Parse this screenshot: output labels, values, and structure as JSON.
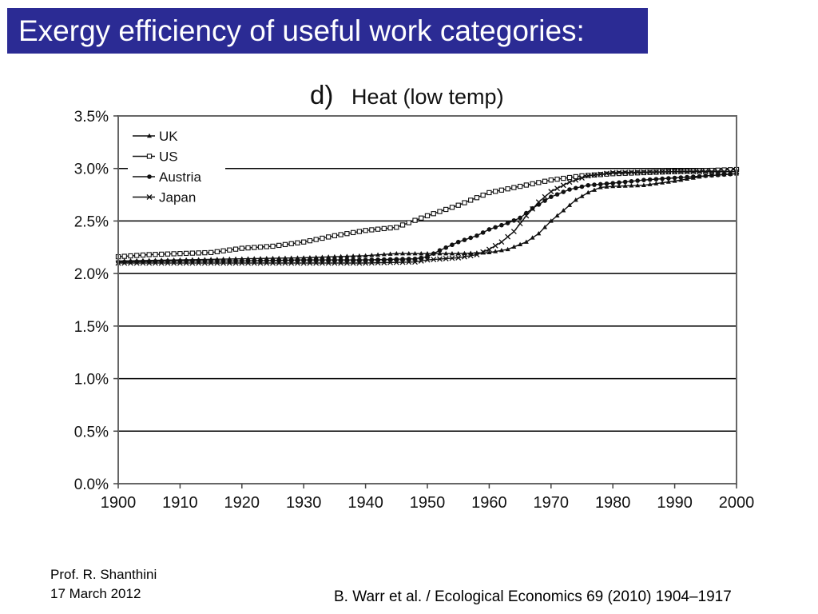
{
  "slide": {
    "title": "Exergy efficiency of useful work categories:",
    "author": "Prof. R. Shanthini",
    "date": "17 March 2012",
    "citation": "B. Warr et al. / Ecological Economics 69 (2010) 1904–1917"
  },
  "colors": {
    "title_bar": "#2b2b94",
    "title_text": "#ffffff",
    "series": "#111111"
  },
  "chart_data": {
    "type": "line",
    "title_prefix": "d)",
    "title": "Heat (low temp)",
    "xlabel": "",
    "ylabel": "",
    "xlim": [
      1900,
      2000
    ],
    "ylim": [
      0,
      3.5
    ],
    "x_ticks": [
      "1900",
      "1910",
      "1920",
      "1930",
      "1940",
      "1950",
      "1960",
      "1970",
      "1980",
      "1990",
      "2000"
    ],
    "y_ticks": [
      "0.0%",
      "0.5%",
      "1.0%",
      "1.5%",
      "2.0%",
      "2.5%",
      "3.0%",
      "3.5%"
    ],
    "grid": "horizontal",
    "legend_position": "top-left",
    "series": [
      {
        "name": "UK",
        "marker": "triangle",
        "points": [
          [
            1900,
            2.12
          ],
          [
            1910,
            2.13
          ],
          [
            1920,
            2.14
          ],
          [
            1930,
            2.15
          ],
          [
            1940,
            2.17
          ],
          [
            1945,
            2.19
          ],
          [
            1950,
            2.19
          ],
          [
            1955,
            2.19
          ],
          [
            1960,
            2.2
          ],
          [
            1963,
            2.23
          ],
          [
            1966,
            2.3
          ],
          [
            1968,
            2.38
          ],
          [
            1970,
            2.5
          ],
          [
            1972,
            2.6
          ],
          [
            1974,
            2.7
          ],
          [
            1976,
            2.77
          ],
          [
            1978,
            2.82
          ],
          [
            1980,
            2.83
          ],
          [
            1985,
            2.84
          ],
          [
            1990,
            2.88
          ],
          [
            1995,
            2.93
          ],
          [
            2000,
            2.95
          ]
        ]
      },
      {
        "name": "US",
        "marker": "square-open",
        "points": [
          [
            1900,
            2.16
          ],
          [
            1905,
            2.18
          ],
          [
            1910,
            2.19
          ],
          [
            1915,
            2.2
          ],
          [
            1920,
            2.24
          ],
          [
            1925,
            2.26
          ],
          [
            1930,
            2.3
          ],
          [
            1935,
            2.36
          ],
          [
            1940,
            2.41
          ],
          [
            1945,
            2.44
          ],
          [
            1950,
            2.55
          ],
          [
            1955,
            2.65
          ],
          [
            1960,
            2.77
          ],
          [
            1965,
            2.83
          ],
          [
            1970,
            2.89
          ],
          [
            1975,
            2.93
          ],
          [
            1980,
            2.95
          ],
          [
            1990,
            2.97
          ],
          [
            2000,
            2.99
          ]
        ]
      },
      {
        "name": "Austria",
        "marker": "circle-filled",
        "points": [
          [
            1900,
            2.11
          ],
          [
            1910,
            2.12
          ],
          [
            1920,
            2.12
          ],
          [
            1930,
            2.13
          ],
          [
            1940,
            2.13
          ],
          [
            1948,
            2.14
          ],
          [
            1950,
            2.16
          ],
          [
            1952,
            2.22
          ],
          [
            1955,
            2.3
          ],
          [
            1958,
            2.36
          ],
          [
            1960,
            2.42
          ],
          [
            1963,
            2.48
          ],
          [
            1965,
            2.53
          ],
          [
            1967,
            2.62
          ],
          [
            1970,
            2.73
          ],
          [
            1973,
            2.8
          ],
          [
            1976,
            2.84
          ],
          [
            1980,
            2.86
          ],
          [
            1985,
            2.89
          ],
          [
            1990,
            2.91
          ],
          [
            1995,
            2.93
          ],
          [
            2000,
            2.95
          ]
        ]
      },
      {
        "name": "Japan",
        "marker": "x",
        "points": [
          [
            1900,
            2.1
          ],
          [
            1910,
            2.1
          ],
          [
            1920,
            2.1
          ],
          [
            1930,
            2.1
          ],
          [
            1940,
            2.1
          ],
          [
            1948,
            2.11
          ],
          [
            1950,
            2.13
          ],
          [
            1955,
            2.15
          ],
          [
            1958,
            2.18
          ],
          [
            1960,
            2.23
          ],
          [
            1962,
            2.3
          ],
          [
            1964,
            2.4
          ],
          [
            1966,
            2.55
          ],
          [
            1968,
            2.68
          ],
          [
            1970,
            2.78
          ],
          [
            1973,
            2.87
          ],
          [
            1976,
            2.93
          ],
          [
            1980,
            2.96
          ],
          [
            1990,
            2.97
          ],
          [
            2000,
            2.97
          ]
        ]
      }
    ]
  }
}
